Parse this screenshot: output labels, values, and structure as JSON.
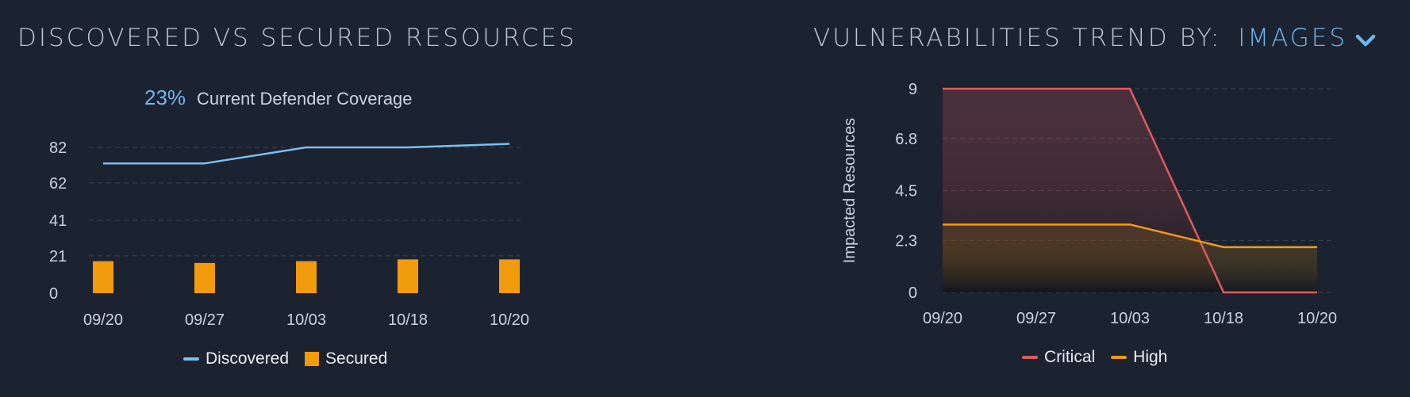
{
  "left": {
    "title": "DISCOVERED VS SECURED RESOURCES",
    "coverage_percent": "23%",
    "coverage_label": "Current Defender Coverage",
    "legend": [
      {
        "label": "Discovered",
        "color": "#7fbef0",
        "kind": "line"
      },
      {
        "label": "Secured",
        "color": "#f29b0c",
        "kind": "box"
      }
    ]
  },
  "right": {
    "title_prefix": "VULNERABILITIES TREND BY:",
    "title_selector": "IMAGES",
    "selector_icon": "chevron-down-icon",
    "legend": [
      {
        "label": "Critical",
        "color": "#e15a5f",
        "kind": "line"
      },
      {
        "label": "High",
        "color": "#f29b0c",
        "kind": "line"
      }
    ]
  },
  "chart_data": [
    {
      "type": "bar",
      "categories": [
        "09/20",
        "09/27",
        "10/03",
        "10/18",
        "10/20"
      ],
      "yticks": [
        "0",
        "21",
        "41",
        "62",
        "82"
      ],
      "ylim": [
        0,
        82
      ],
      "grid": true,
      "legend_position": "bottom",
      "series": [
        {
          "name": "Discovered",
          "type": "line",
          "color": "#7fbef0",
          "values": [
            73,
            73,
            82,
            82,
            84
          ]
        },
        {
          "name": "Secured",
          "type": "bar",
          "color": "#f29b0c",
          "values": [
            18,
            17,
            18,
            19,
            19
          ]
        }
      ]
    },
    {
      "type": "area",
      "categories": [
        "09/20",
        "09/27",
        "10/03",
        "10/18",
        "10/20"
      ],
      "x_positions": [
        0,
        1,
        2,
        3,
        4
      ],
      "ylabel": "Impacted Resources",
      "yticks": [
        "0",
        "2.3",
        "4.5",
        "6.8",
        "9"
      ],
      "ylim": [
        0,
        9
      ],
      "grid": true,
      "legend_position": "bottom",
      "series": [
        {
          "name": "Critical",
          "color": "#e15a5f",
          "points": [
            [
              0,
              9
            ],
            [
              1,
              9
            ],
            [
              2,
              9
            ],
            [
              3,
              0
            ],
            [
              4,
              0
            ]
          ]
        },
        {
          "name": "High",
          "color": "#f29b0c",
          "points": [
            [
              0,
              3
            ],
            [
              1,
              3
            ],
            [
              2,
              3
            ],
            [
              3,
              2
            ],
            [
              4,
              2
            ]
          ]
        }
      ]
    }
  ]
}
